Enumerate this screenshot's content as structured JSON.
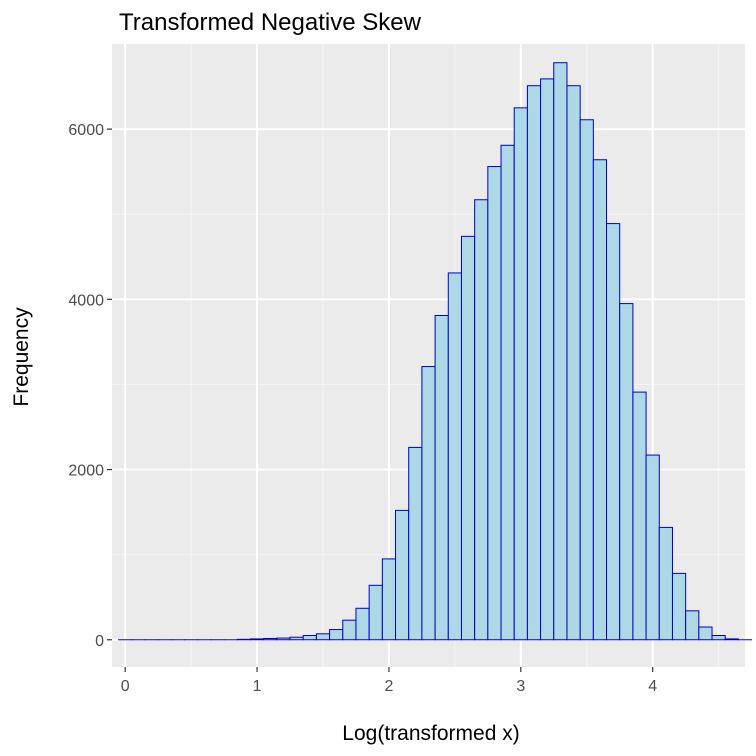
{
  "chart_data": {
    "type": "bar",
    "title": "Transformed Negative Skew",
    "xlabel": "Log(transformed x)",
    "ylabel": "Frequency",
    "xlim": [
      -0.1,
      4.7
    ],
    "ylim": [
      -320,
      7000
    ],
    "x_ticks": [
      {
        "value": 0,
        "label": "0"
      },
      {
        "value": 1,
        "label": "1"
      },
      {
        "value": 2,
        "label": "2"
      },
      {
        "value": 3,
        "label": "3"
      },
      {
        "value": 4,
        "label": "4"
      }
    ],
    "y_ticks": [
      {
        "value": 0,
        "label": "0"
      },
      {
        "value": 2000,
        "label": "2000"
      },
      {
        "value": 4000,
        "label": "4000"
      },
      {
        "value": 6000,
        "label": "6000"
      }
    ],
    "x_minor_breaks": [
      0.5,
      1.5,
      2.5,
      3.5,
      4.5
    ],
    "y_minor_breaks": [
      1000,
      3000,
      5000
    ],
    "bin_start": -0.05,
    "bin_width": 0.1,
    "values": [
      0,
      0,
      0,
      0,
      0,
      0,
      0,
      0,
      0,
      5,
      10,
      15,
      20,
      30,
      50,
      70,
      120,
      230,
      370,
      640,
      950,
      1520,
      2260,
      3210,
      3810,
      4310,
      4740,
      5170,
      5560,
      5810,
      6250,
      6510,
      6590,
      6780,
      6510,
      6110,
      5640,
      4890,
      3950,
      2910,
      2170,
      1320,
      780,
      340,
      150,
      50,
      10,
      0
    ],
    "grid": true,
    "legend": "none",
    "colors": {
      "panel_background": "#ebebeb",
      "grid_major": "#ffffff",
      "grid_minor": "#f5f5f5",
      "bar_fill": "#add8e6",
      "bar_outline": "#0000cd"
    }
  }
}
